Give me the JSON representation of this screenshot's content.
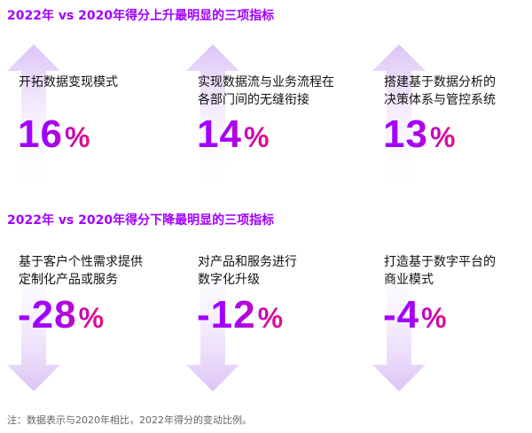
{
  "colors": {
    "accent": "#A100FF",
    "pink": "#E5127F",
    "arrow_light": "#EFE3FB",
    "arrow_dark": "#DCC3F6",
    "note": "#666666"
  },
  "sections": [
    {
      "title": "2022年 vs 2020年得分上升最明显的三项指标",
      "direction": "up",
      "items": [
        {
          "label_lines": [
            "开拓数据变现模式"
          ],
          "value": "16",
          "unit": "%"
        },
        {
          "label_lines": [
            "实现数据流与业务流程在",
            "各部门间的无缝衔接"
          ],
          "value": "14",
          "unit": "%"
        },
        {
          "label_lines": [
            "搭建基于数据分析的",
            "决策体系与管控系统"
          ],
          "value": "13",
          "unit": "%"
        }
      ]
    },
    {
      "title": "2022年 vs 2020年得分下降最明显的三项指标",
      "direction": "down",
      "items": [
        {
          "label_lines": [
            "基于客户个性需求提供",
            "定制化产品或服务"
          ],
          "value": "-28",
          "unit": "%"
        },
        {
          "label_lines": [
            "对产品和服务进行",
            "数字化升级"
          ],
          "value": "-12",
          "unit": "%"
        },
        {
          "label_lines": [
            "打造基于数字平台的",
            "商业模式"
          ],
          "value": "-4",
          "unit": "%"
        }
      ]
    }
  ],
  "note": "注：数据表示与2020年相比，2022年得分的变动比例。"
}
